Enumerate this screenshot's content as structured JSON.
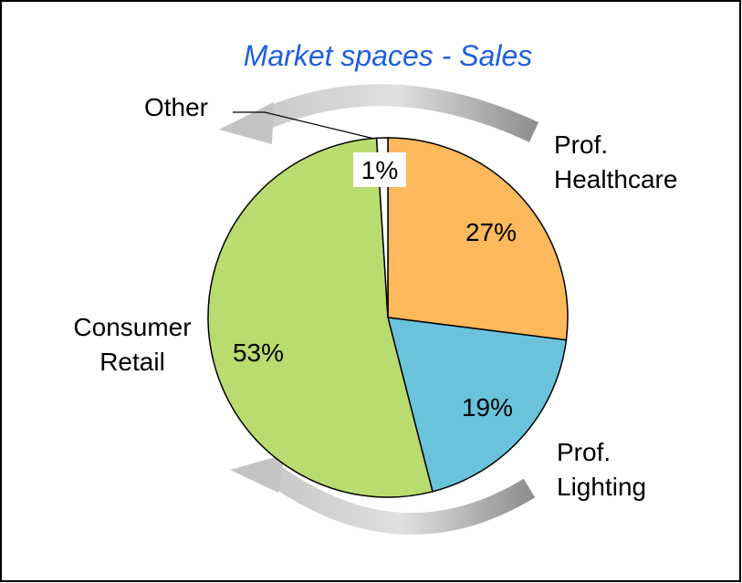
{
  "chart_data": {
    "type": "pie",
    "title": "Market spaces - Sales",
    "categories": [
      "Prof.\nHealthcare",
      "Prof.\nLighting",
      "Consumer\nRetail",
      "Other"
    ],
    "values": [
      27,
      19,
      53,
      1
    ],
    "value_labels": [
      "27%",
      "19%",
      "53%",
      "1%"
    ],
    "colors": [
      "#FDB95B",
      "#6AC3DB",
      "#B8DC6F",
      "#FFFFFF"
    ]
  }
}
